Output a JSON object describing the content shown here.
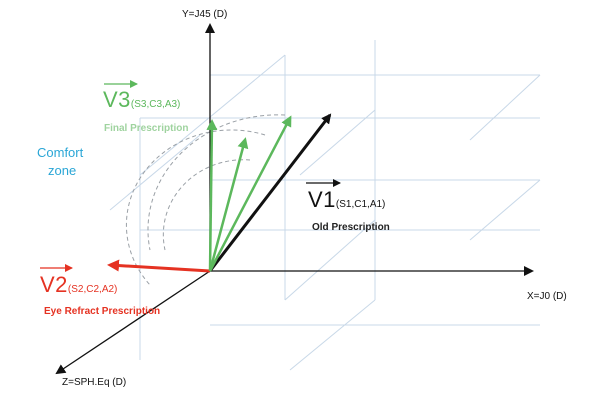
{
  "axes": {
    "y_label": "Y=J45 (D)",
    "x_label": "X=J0 (D)",
    "z_label": "Z=SPH.Eq (D)"
  },
  "comfort_zone": {
    "line1": "Comfort",
    "line2": "zone"
  },
  "vectors": {
    "v1": {
      "name": "V1",
      "params": "(S1,C1,A1)",
      "caption": "Old Prescription"
    },
    "v2": {
      "name": "V2",
      "params": "(S2,C2,A2)",
      "caption": "Eye Refract Prescription"
    },
    "v3": {
      "name": "V3",
      "params": "(S3,C3,A3)",
      "caption": "Final Prescription"
    }
  },
  "colors": {
    "axis": "#111111",
    "grid": "#c8d8e8",
    "v1": "#111111",
    "v2": "#e53222",
    "v3": "#5cb85c",
    "comfort": "#2aa6d6",
    "dashed": "#9aa0a6"
  }
}
